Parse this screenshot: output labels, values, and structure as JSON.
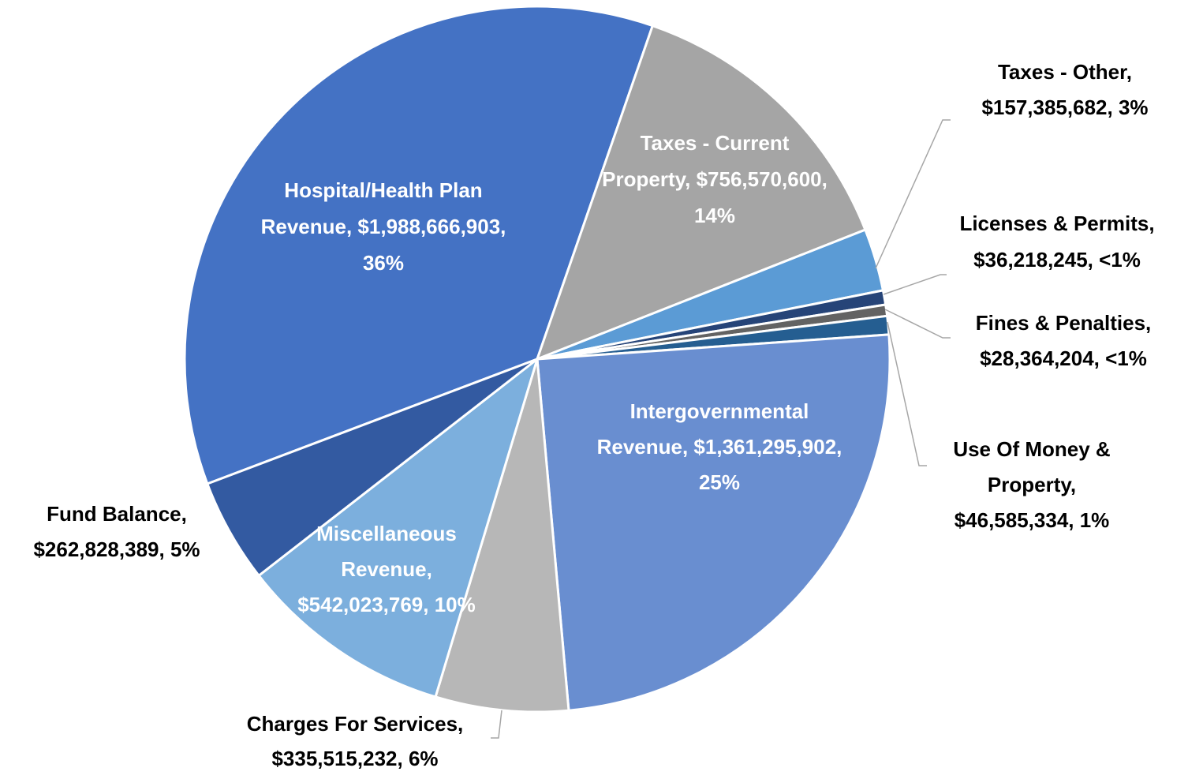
{
  "chart_data": {
    "type": "pie",
    "categories": [
      "Hospital/Health Plan Revenue",
      "Taxes - Current Property",
      "Taxes - Other",
      "Licenses & Permits",
      "Fines & Penalties",
      "Use Of Money & Property",
      "Intergovernmental Revenue",
      "Charges For Services",
      "Miscellaneous Revenue",
      "Fund Balance"
    ],
    "values": [
      1988666903,
      756570600,
      157385682,
      36218245,
      28364204,
      46585334,
      1361295902,
      335515232,
      542023769,
      262828389
    ],
    "value_labels": [
      "Hospital/Health Plan Revenue, $1,988,666,903, 36%",
      "Taxes - Current Property, $756,570,600, 14%",
      "Taxes - Other, $157,385,682, 3%",
      "Licenses & Permits, $36,218,245, <1%",
      "Fines & Penalties, $28,364,204, <1%",
      "Use Of Money & Property, $46,585,334, 1%",
      "Intergovernmental Revenue, $1,361,295,902, 25%",
      "Charges For Services, $335,515,232, 6%",
      "Miscellaneous Revenue, $542,023,769, 10%",
      "Fund Balance, $262,828,389, 5%"
    ],
    "colors": [
      "#4472c4",
      "#a5a5a5",
      "#5b9bd5",
      "#264478",
      "#636363",
      "#255e91",
      "#698ed0",
      "#b7b7b7",
      "#7cafdd",
      "#335aa1"
    ]
  }
}
